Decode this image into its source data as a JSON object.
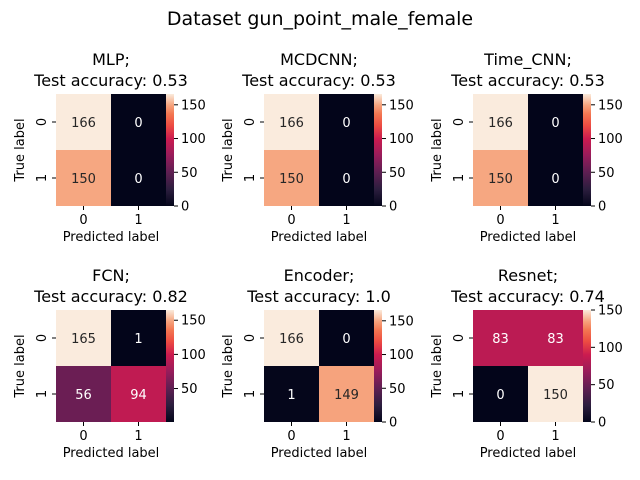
{
  "figure": {
    "title": "Dataset gun_point_male_female"
  },
  "colorbar_ticks": {
    "standard": [
      "0",
      "50",
      "100",
      "150"
    ],
    "fcn": [
      "50",
      "100",
      "150"
    ],
    "resnet": [
      "0",
      "50",
      "100",
      "150"
    ]
  },
  "chart_data": [
    {
      "type": "heatmap",
      "title": "MLP;",
      "subtitle": "Test accuracy: 0.53",
      "xlabel": "Predicted label",
      "ylabel": "True label",
      "x_ticks": [
        "0",
        "1"
      ],
      "y_ticks": [
        "0",
        "1"
      ],
      "matrix": [
        [
          166,
          0
        ],
        [
          150,
          0
        ]
      ],
      "color_range": [
        0,
        166
      ]
    },
    {
      "type": "heatmap",
      "title": "MCDCNN;",
      "subtitle": "Test accuracy: 0.53",
      "xlabel": "Predicted label",
      "ylabel": "True label",
      "x_ticks": [
        "0",
        "1"
      ],
      "y_ticks": [
        "0",
        "1"
      ],
      "matrix": [
        [
          166,
          0
        ],
        [
          150,
          0
        ]
      ],
      "color_range": [
        0,
        166
      ]
    },
    {
      "type": "heatmap",
      "title": "Time_CNN;",
      "subtitle": "Test accuracy: 0.53",
      "xlabel": "Predicted label",
      "ylabel": "True label",
      "x_ticks": [
        "0",
        "1"
      ],
      "y_ticks": [
        "0",
        "1"
      ],
      "matrix": [
        [
          166,
          0
        ],
        [
          150,
          0
        ]
      ],
      "color_range": [
        0,
        166
      ]
    },
    {
      "type": "heatmap",
      "title": "FCN;",
      "subtitle": "Test accuracy: 0.82",
      "xlabel": "Predicted label",
      "ylabel": "True label",
      "x_ticks": [
        "0",
        "1"
      ],
      "y_ticks": [
        "0",
        "1"
      ],
      "matrix": [
        [
          165,
          1
        ],
        [
          56,
          94
        ]
      ],
      "color_range": [
        1,
        165
      ]
    },
    {
      "type": "heatmap",
      "title": "Encoder;",
      "subtitle": "Test accuracy: 1.0",
      "xlabel": "Predicted label",
      "ylabel": "True label",
      "x_ticks": [
        "0",
        "1"
      ],
      "y_ticks": [
        "0",
        "1"
      ],
      "matrix": [
        [
          166,
          0
        ],
        [
          1,
          149
        ]
      ],
      "color_range": [
        0,
        166
      ]
    },
    {
      "type": "heatmap",
      "title": "Resnet;",
      "subtitle": "Test accuracy: 0.74",
      "xlabel": "Predicted label",
      "ylabel": "True label",
      "x_ticks": [
        "0",
        "1"
      ],
      "y_ticks": [
        "0",
        "1"
      ],
      "matrix": [
        [
          83,
          83
        ],
        [
          0,
          150
        ]
      ],
      "color_range": [
        0,
        150
      ]
    }
  ]
}
